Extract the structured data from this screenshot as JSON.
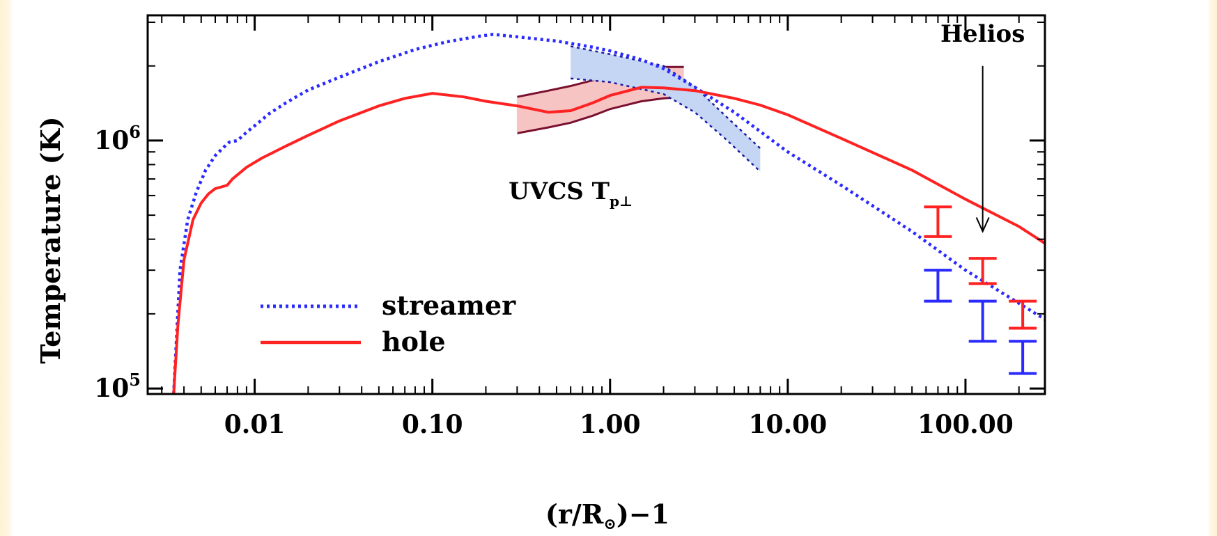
{
  "colors": {
    "streamer": "#2a2aff",
    "hole": "#ff2222",
    "streamer_band": "#c4d6f4",
    "hole_band": "#f7c4c4",
    "hole_band_edge": "#7a1030",
    "streamer_band_edge": "#1a1aa0",
    "frame_background": "#fdf2d2"
  },
  "chart_data": {
    "type": "line",
    "xscale": "log",
    "yscale": "log",
    "xlim": [
      0.0025,
      280
    ],
    "ylim": [
      95000,
      3200000
    ],
    "xlabel": "(r/R",
    "xlabel_sub": "⊙",
    "xlabel_suffix": ")−1",
    "ylabel": "Temperature (K)",
    "x_ticks": [
      {
        "value": 0.01,
        "label": "0.01"
      },
      {
        "value": 0.1,
        "label": "0.10"
      },
      {
        "value": 1,
        "label": "1.00"
      },
      {
        "value": 10,
        "label": "10.00"
      },
      {
        "value": 100,
        "label": "100.00"
      }
    ],
    "y_ticks": [
      {
        "value": 100000,
        "label_base": "10",
        "label_exp": "5"
      },
      {
        "value": 1000000,
        "label_base": "10",
        "label_exp": "6"
      }
    ],
    "grid": false,
    "legend_position": "bottom-left",
    "series": [
      {
        "name": "streamer",
        "style": "dotted",
        "x": [
          0.0035,
          0.0038,
          0.0042,
          0.0047,
          0.0053,
          0.006,
          0.0067,
          0.0072,
          0.008,
          0.009,
          0.0105,
          0.012,
          0.015,
          0.02,
          0.03,
          0.05,
          0.08,
          0.12,
          0.18,
          0.22,
          0.3,
          0.5,
          0.8,
          1.0,
          1.5,
          2.0,
          3.0,
          5.0,
          10.0,
          20.0,
          50.0,
          100.0,
          280.0
        ],
        "y": [
          95000,
          300000,
          480000,
          620000,
          760000,
          870000,
          940000,
          985000,
          1000000,
          1080000,
          1180000,
          1280000,
          1420000,
          1600000,
          1800000,
          2080000,
          2330000,
          2500000,
          2630000,
          2680000,
          2620000,
          2520000,
          2380000,
          2300000,
          2120000,
          1950000,
          1640000,
          1300000,
          900000,
          660000,
          430000,
          300000,
          190000
        ]
      },
      {
        "name": "hole",
        "style": "solid",
        "x": [
          0.0035,
          0.0037,
          0.004,
          0.0045,
          0.005,
          0.0055,
          0.006,
          0.0065,
          0.007,
          0.0075,
          0.009,
          0.011,
          0.015,
          0.02,
          0.03,
          0.05,
          0.07,
          0.1,
          0.15,
          0.2,
          0.3,
          0.45,
          0.6,
          0.8,
          1.0,
          1.5,
          2.0,
          3.0,
          5.0,
          7.0,
          10.0,
          20.0,
          50.0,
          100.0,
          200.0,
          280.0
        ],
        "y": [
          95000,
          180000,
          330000,
          480000,
          560000,
          610000,
          640000,
          650000,
          660000,
          700000,
          780000,
          850000,
          950000,
          1050000,
          1200000,
          1380000,
          1480000,
          1550000,
          1500000,
          1440000,
          1380000,
          1300000,
          1320000,
          1420000,
          1520000,
          1640000,
          1630000,
          1590000,
          1480000,
          1390000,
          1270000,
          1020000,
          760000,
          580000,
          450000,
          385000
        ]
      }
    ],
    "bands": [
      {
        "name": "UVCS hole band",
        "x": [
          0.3,
          0.45,
          0.6,
          0.8,
          1.0,
          1.5,
          2.0,
          2.6
        ],
        "y_low": [
          1070000,
          1130000,
          1180000,
          1260000,
          1340000,
          1440000,
          1480000,
          1500000
        ],
        "y_high": [
          1500000,
          1590000,
          1660000,
          1750000,
          1820000,
          1920000,
          1980000,
          1980000
        ]
      },
      {
        "name": "UVCS streamer band",
        "x": [
          0.6,
          1.0,
          2.0,
          3.0,
          4.5,
          7.0
        ],
        "y_low": [
          1780000,
          1720000,
          1540000,
          1300000,
          1010000,
          750000
        ],
        "y_high": [
          2400000,
          2230000,
          2000000,
          1650000,
          1250000,
          930000
        ]
      }
    ],
    "error_bars": [
      {
        "series": "hole",
        "x": 70,
        "y_low": 410000,
        "y_high": 540000
      },
      {
        "series": "hole",
        "x": 125,
        "y_low": 265000,
        "y_high": 335000
      },
      {
        "series": "hole",
        "x": 210,
        "y_low": 175000,
        "y_high": 225000
      },
      {
        "series": "streamer",
        "x": 70,
        "y_low": 225000,
        "y_high": 300000
      },
      {
        "series": "streamer",
        "x": 125,
        "y_low": 155000,
        "y_high": 225000
      },
      {
        "series": "streamer",
        "x": 210,
        "y_low": 115000,
        "y_high": 155000
      }
    ],
    "annotations": {
      "uvcs_label": "UVCS T",
      "uvcs_sub": "p⊥",
      "helios_label": "Helios"
    },
    "helios_arrow": {
      "x": 125,
      "y_tail": 2000000,
      "y_head": 430000
    },
    "uvcs_label_anchor": {
      "x": 0.6,
      "y": 580000
    },
    "helios_label_anchor": {
      "x": 125,
      "y": 2500000
    }
  }
}
